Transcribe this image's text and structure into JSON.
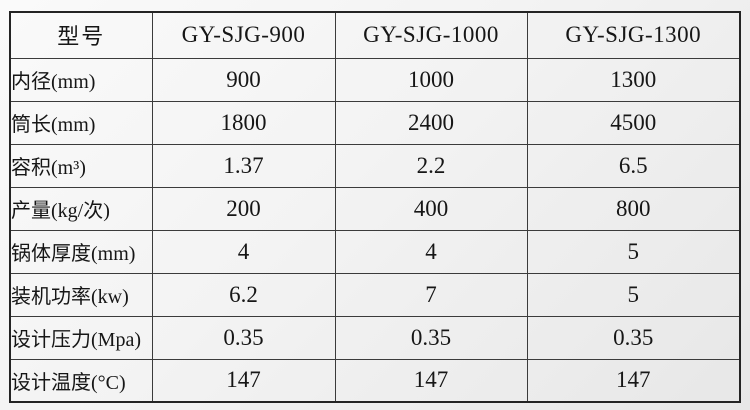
{
  "colors": {
    "background_light": "#fafafa",
    "background_dark": "#e7e7e7",
    "grid_line": "#3b3b3b",
    "outer_border": "#242424",
    "text": "#161616"
  },
  "chart_data": {
    "type": "table",
    "columns": [
      "型号",
      "GY-SJG-900",
      "GY-SJG-1000",
      "GY-SJG-1300"
    ],
    "rows": [
      {
        "label": "内径(mm)",
        "values": [
          "900",
          "1000",
          "1300"
        ]
      },
      {
        "label": "筒长(mm)",
        "values": [
          "1800",
          "2400",
          "4500"
        ]
      },
      {
        "label": "容积(m³)",
        "values": [
          "1.37",
          "2.2",
          "6.5"
        ]
      },
      {
        "label": "产量(kg/次)",
        "values": [
          "200",
          "400",
          "800"
        ]
      },
      {
        "label": "锅体厚度(mm)",
        "values": [
          "4",
          "4",
          "5"
        ]
      },
      {
        "label": "装机功率(kw)",
        "values": [
          "6.2",
          "7",
          "5"
        ]
      },
      {
        "label": "设计压力(Mpa)",
        "values": [
          "0.35",
          "0.35",
          "0.35"
        ]
      },
      {
        "label": "设计温度(°C)",
        "values": [
          "147",
          "147",
          "147"
        ]
      }
    ]
  }
}
